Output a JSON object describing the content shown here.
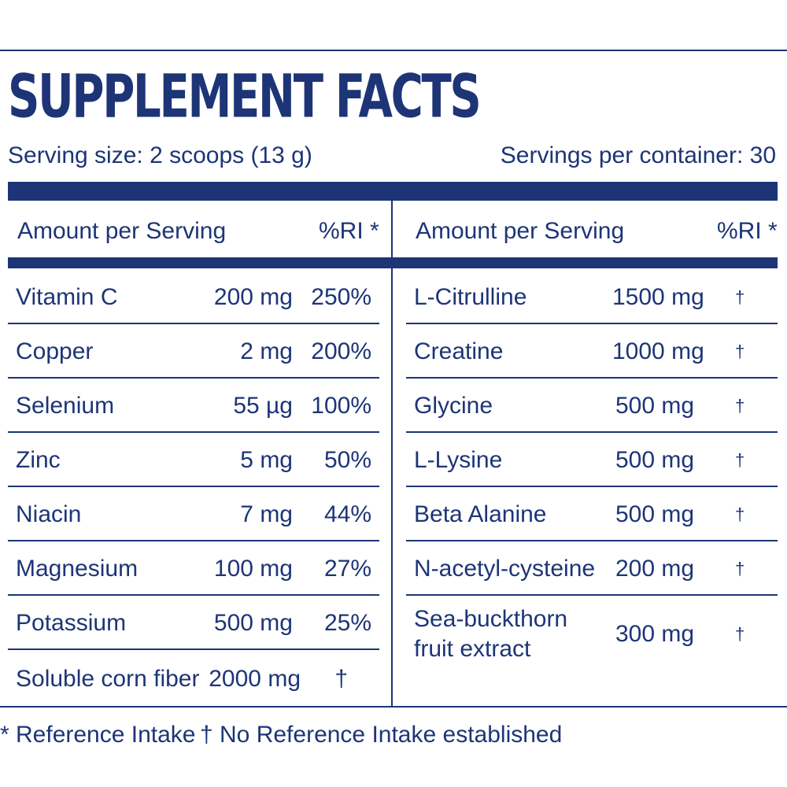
{
  "title": "SUPPLEMENT FACTS",
  "serving_size": "Serving size: 2 scoops (13 g)",
  "servings_per_container": "Servings per container: 30",
  "header": {
    "amount_label": "Amount per Serving",
    "ri_label": "%RI *"
  },
  "left_rows": [
    {
      "name": "Vitamin C",
      "amount": "200 mg",
      "ri": "250%"
    },
    {
      "name": "Copper",
      "amount": "2 mg",
      "ri": "200%"
    },
    {
      "name": "Selenium",
      "amount": "55 µg",
      "ri": "100%"
    },
    {
      "name": "Zinc",
      "amount": "5 mg",
      "ri": "50%"
    },
    {
      "name": "Niacin",
      "amount": "7 mg",
      "ri": "44%"
    },
    {
      "name": "Magnesium",
      "amount": "100 mg",
      "ri": "27%"
    },
    {
      "name": "Potassium",
      "amount": "500 mg",
      "ri": "25%"
    },
    {
      "name": "Soluble corn fiber",
      "amount": "2000 mg",
      "ri": "†"
    }
  ],
  "right_rows": [
    {
      "name": "L-Citrulline",
      "amount": "1500 mg",
      "ri": "†"
    },
    {
      "name": "Creatine",
      "amount": "1000 mg",
      "ri": "†"
    },
    {
      "name": "Glycine",
      "amount": "500 mg",
      "ri": "†"
    },
    {
      "name": "L-Lysine",
      "amount": "500 mg",
      "ri": "†"
    },
    {
      "name": "Beta Alanine",
      "amount": "500 mg",
      "ri": "†"
    },
    {
      "name": "N-acetyl-cysteine",
      "amount": "200 mg",
      "ri": "†"
    },
    {
      "name": "Sea-buckthorn fruit extract",
      "amount": "300 mg",
      "ri": "†"
    }
  ],
  "footnotes": {
    "reference": "* Reference Intake",
    "no_reference": "† No Reference Intake established"
  },
  "colors": {
    "brand_navy": "#1d3577",
    "background": "#ffffff"
  }
}
